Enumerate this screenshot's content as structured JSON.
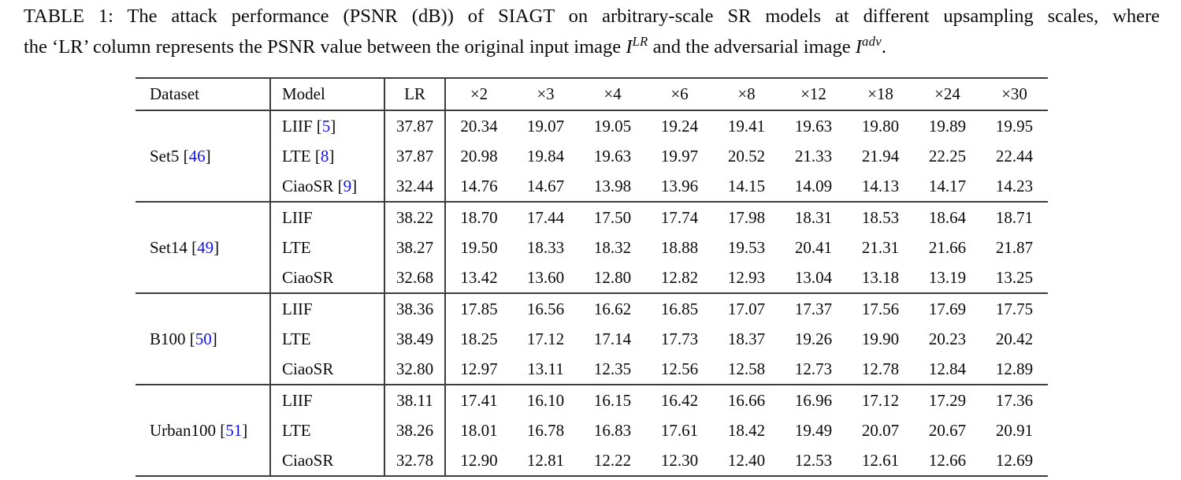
{
  "colors": {
    "citation_blue": "#1212ee",
    "rule_gray": "#3d3d3d",
    "text": "#0b0b0b"
  },
  "caption": {
    "line1": "TABLE 1: The attack performance (PSNR (dB)) of SIAGT on arbitrary-scale SR models at different upsampling scales, where",
    "line2_prefix": "the ‘LR’ column represents the PSNR value between the original input image ",
    "math1_base": "I",
    "math1_sup": "LR",
    "line2_mid": " and the adversarial image ",
    "math2_base": "I",
    "math2_sup": "adv",
    "line2_suffix": "."
  },
  "table": {
    "headers": [
      "Dataset",
      "Model",
      "LR",
      "×2",
      "×3",
      "×4",
      "×6",
      "×8",
      "×12",
      "×18",
      "×24",
      "×30"
    ],
    "groups": [
      {
        "dataset": "Set5",
        "citation": "46",
        "rows": [
          {
            "model": "LIIF",
            "citation": "5",
            "lr": "37.87",
            "values": [
              "20.34",
              "19.07",
              "19.05",
              "19.24",
              "19.41",
              "19.63",
              "19.80",
              "19.89",
              "19.95"
            ]
          },
          {
            "model": "LTE",
            "citation": "8",
            "lr": "37.87",
            "values": [
              "20.98",
              "19.84",
              "19.63",
              "19.97",
              "20.52",
              "21.33",
              "21.94",
              "22.25",
              "22.44"
            ]
          },
          {
            "model": "CiaoSR",
            "citation": "9",
            "lr": "32.44",
            "values": [
              "14.76",
              "14.67",
              "13.98",
              "13.96",
              "14.15",
              "14.09",
              "14.13",
              "14.17",
              "14.23"
            ]
          }
        ]
      },
      {
        "dataset": "Set14",
        "citation": "49",
        "rows": [
          {
            "model": "LIIF",
            "citation": null,
            "lr": "38.22",
            "values": [
              "18.70",
              "17.44",
              "17.50",
              "17.74",
              "17.98",
              "18.31",
              "18.53",
              "18.64",
              "18.71"
            ]
          },
          {
            "model": "LTE",
            "citation": null,
            "lr": "38.27",
            "values": [
              "19.50",
              "18.33",
              "18.32",
              "18.88",
              "19.53",
              "20.41",
              "21.31",
              "21.66",
              "21.87"
            ]
          },
          {
            "model": "CiaoSR",
            "citation": null,
            "lr": "32.68",
            "values": [
              "13.42",
              "13.60",
              "12.80",
              "12.82",
              "12.93",
              "13.04",
              "13.18",
              "13.19",
              "13.25"
            ]
          }
        ]
      },
      {
        "dataset": "B100",
        "citation": "50",
        "rows": [
          {
            "model": "LIIF",
            "citation": null,
            "lr": "38.36",
            "values": [
              "17.85",
              "16.56",
              "16.62",
              "16.85",
              "17.07",
              "17.37",
              "17.56",
              "17.69",
              "17.75"
            ]
          },
          {
            "model": "LTE",
            "citation": null,
            "lr": "38.49",
            "values": [
              "18.25",
              "17.12",
              "17.14",
              "17.73",
              "18.37",
              "19.26",
              "19.90",
              "20.23",
              "20.42"
            ]
          },
          {
            "model": "CiaoSR",
            "citation": null,
            "lr": "32.80",
            "values": [
              "12.97",
              "13.11",
              "12.35",
              "12.56",
              "12.58",
              "12.73",
              "12.78",
              "12.84",
              "12.89"
            ]
          }
        ]
      },
      {
        "dataset": "Urban100",
        "citation": "51",
        "rows": [
          {
            "model": "LIIF",
            "citation": null,
            "lr": "38.11",
            "values": [
              "17.41",
              "16.10",
              "16.15",
              "16.42",
              "16.66",
              "16.96",
              "17.12",
              "17.29",
              "17.36"
            ]
          },
          {
            "model": "LTE",
            "citation": null,
            "lr": "38.26",
            "values": [
              "18.01",
              "16.78",
              "16.83",
              "17.61",
              "18.42",
              "19.49",
              "20.07",
              "20.67",
              "20.91"
            ]
          },
          {
            "model": "CiaoSR",
            "citation": null,
            "lr": "32.78",
            "values": [
              "12.90",
              "12.81",
              "12.22",
              "12.30",
              "12.40",
              "12.53",
              "12.61",
              "12.66",
              "12.69"
            ]
          }
        ]
      }
    ]
  }
}
